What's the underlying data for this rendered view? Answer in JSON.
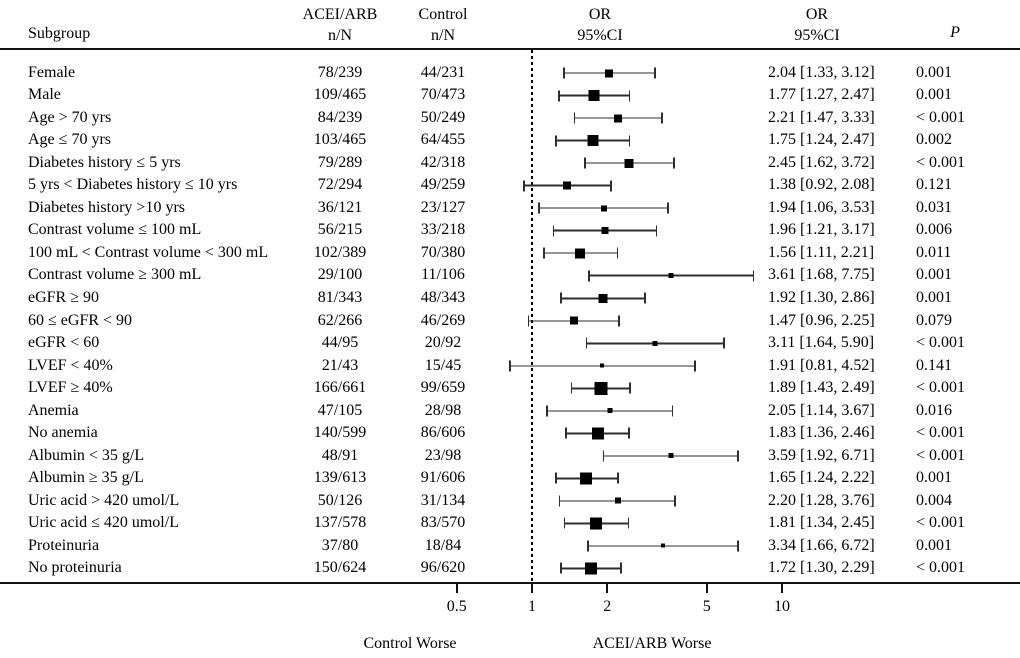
{
  "header": {
    "subgroup": "Subgroup",
    "acei_line1": "ACEI/ARB",
    "acei_line2": "n/N",
    "control_line1": "Control",
    "control_line2": "n/N",
    "or_plot_line1": "OR",
    "or_plot_line2": "95%CI",
    "or_text_line1": "OR",
    "or_text_line2": "95%CI",
    "p": "P"
  },
  "axis": {
    "ticks": [
      "0.5",
      "1",
      "2",
      "5",
      "10"
    ],
    "tick_values": [
      0.5,
      1,
      2,
      5,
      10
    ],
    "left_label": "Control Worse",
    "right_label": "ACEI/ARB Worse"
  },
  "chart_data": {
    "type": "forest",
    "x_scale": "log",
    "reference_line": 1,
    "x_ticks": [
      0.5,
      1,
      2,
      5,
      10
    ],
    "xlabel_left": "Control Worse",
    "xlabel_right": "ACEI/ARB Worse",
    "columns": [
      "Subgroup",
      "ACEI/ARB n/N",
      "Control n/N",
      "OR 95%CI",
      "OR 95%CI",
      "P"
    ],
    "rows": [
      {
        "subgroup": "Female",
        "acei": "78/239",
        "control": "44/231",
        "or": 2.04,
        "ci_lo": 1.33,
        "ci_hi": 3.12,
        "or_ci": "2.04 [1.33, 3.12]",
        "p": "0.001"
      },
      {
        "subgroup": "Male",
        "acei": "109/465",
        "control": "70/473",
        "or": 1.77,
        "ci_lo": 1.27,
        "ci_hi": 2.47,
        "or_ci": "1.77 [1.27, 2.47]",
        "p": "0.001"
      },
      {
        "subgroup": "Age > 70 yrs",
        "acei": "84/239",
        "control": "50/249",
        "or": 2.21,
        "ci_lo": 1.47,
        "ci_hi": 3.33,
        "or_ci": "2.21 [1.47, 3.33]",
        "p": "< 0.001"
      },
      {
        "subgroup": "Age ≤ 70 yrs",
        "acei": "103/465",
        "control": "64/455",
        "or": 1.75,
        "ci_lo": 1.24,
        "ci_hi": 2.47,
        "or_ci": "1.75 [1.24, 2.47]",
        "p": "0.002"
      },
      {
        "subgroup": "Diabetes history ≤ 5 yrs",
        "acei": "79/289",
        "control": "42/318",
        "or": 2.45,
        "ci_lo": 1.62,
        "ci_hi": 3.72,
        "or_ci": "2.45 [1.62, 3.72]",
        "p": "< 0.001"
      },
      {
        "subgroup": "5 yrs < Diabetes history ≤ 10 yrs",
        "acei": "72/294",
        "control": "49/259",
        "or": 1.38,
        "ci_lo": 0.92,
        "ci_hi": 2.08,
        "or_ci": "1.38 [0.92, 2.08]",
        "p": "0.121"
      },
      {
        "subgroup": "Diabetes history >10 yrs",
        "acei": "36/121",
        "control": "23/127",
        "or": 1.94,
        "ci_lo": 1.06,
        "ci_hi": 3.53,
        "or_ci": "1.94 [1.06, 3.53]",
        "p": "0.031"
      },
      {
        "subgroup": "Contrast volume ≤ 100 mL",
        "acei": "56/215",
        "control": "33/218",
        "or": 1.96,
        "ci_lo": 1.21,
        "ci_hi": 3.17,
        "or_ci": "1.96 [1.21, 3.17]",
        "p": "0.006"
      },
      {
        "subgroup": "100 mL < Contrast volume < 300 mL",
        "acei": "102/389",
        "control": "70/380",
        "or": 1.56,
        "ci_lo": 1.11,
        "ci_hi": 2.21,
        "or_ci": "1.56 [1.11, 2.21]",
        "p": "0.011"
      },
      {
        "subgroup": "Contrast volume ≥ 300 mL",
        "acei": "29/100",
        "control": "11/106",
        "or": 3.61,
        "ci_lo": 1.68,
        "ci_hi": 7.75,
        "or_ci": "3.61 [1.68, 7.75]",
        "p": "0.001"
      },
      {
        "subgroup": "eGFR ≥ 90",
        "acei": "81/343",
        "control": "48/343",
        "or": 1.92,
        "ci_lo": 1.3,
        "ci_hi": 2.86,
        "or_ci": "1.92 [1.30, 2.86]",
        "p": "0.001"
      },
      {
        "subgroup": "60 ≤ eGFR < 90",
        "acei": "62/266",
        "control": "46/269",
        "or": 1.47,
        "ci_lo": 0.96,
        "ci_hi": 2.25,
        "or_ci": "1.47 [0.96, 2.25]",
        "p": "0.079"
      },
      {
        "subgroup": "eGFR < 60",
        "acei": "44/95",
        "control": "20/92",
        "or": 3.11,
        "ci_lo": 1.64,
        "ci_hi": 5.9,
        "or_ci": "3.11 [1.64, 5.90]",
        "p": "< 0.001"
      },
      {
        "subgroup": "LVEF < 40%",
        "acei": "21/43",
        "control": "15/45",
        "or": 1.91,
        "ci_lo": 0.81,
        "ci_hi": 4.52,
        "or_ci": "1.91 [0.81, 4.52]",
        "p": "0.141"
      },
      {
        "subgroup": "LVEF ≥ 40%",
        "acei": "166/661",
        "control": "99/659",
        "or": 1.89,
        "ci_lo": 1.43,
        "ci_hi": 2.49,
        "or_ci": "1.89 [1.43, 2.49]",
        "p": "< 0.001"
      },
      {
        "subgroup": "Anemia",
        "acei": "47/105",
        "control": "28/98",
        "or": 2.05,
        "ci_lo": 1.14,
        "ci_hi": 3.67,
        "or_ci": "2.05 [1.14, 3.67]",
        "p": "0.016"
      },
      {
        "subgroup": "No anemia",
        "acei": "140/599",
        "control": "86/606",
        "or": 1.83,
        "ci_lo": 1.36,
        "ci_hi": 2.46,
        "or_ci": "1.83 [1.36, 2.46]",
        "p": "< 0.001"
      },
      {
        "subgroup": "Albumin < 35 g/L",
        "acei": "48/91",
        "control": "23/98",
        "or": 3.59,
        "ci_lo": 1.92,
        "ci_hi": 6.71,
        "or_ci": "3.59 [1.92, 6.71]",
        "p": "< 0.001"
      },
      {
        "subgroup": "Albumin ≥ 35 g/L",
        "acei": "139/613",
        "control": "91/606",
        "or": 1.65,
        "ci_lo": 1.24,
        "ci_hi": 2.22,
        "or_ci": "1.65 [1.24, 2.22]",
        "p": "0.001"
      },
      {
        "subgroup": "Uric acid > 420 umol/L",
        "acei": "50/126",
        "control": "31/134",
        "or": 2.2,
        "ci_lo": 1.28,
        "ci_hi": 3.76,
        "or_ci": "2.20 [1.28, 3.76]",
        "p": "0.004"
      },
      {
        "subgroup": "Uric acid ≤ 420 umol/L",
        "acei": "137/578",
        "control": "83/570",
        "or": 1.81,
        "ci_lo": 1.34,
        "ci_hi": 2.45,
        "or_ci": "1.81 [1.34, 2.45]",
        "p": "< 0.001"
      },
      {
        "subgroup": "Proteinuria",
        "acei": "37/80",
        "control": "18/84",
        "or": 3.34,
        "ci_lo": 1.66,
        "ci_hi": 6.72,
        "or_ci": "3.34 [1.66, 6.72]",
        "p": "0.001"
      },
      {
        "subgroup": "No proteinuria",
        "acei": "150/624",
        "control": "96/620",
        "or": 1.72,
        "ci_lo": 1.3,
        "ci_hi": 2.29,
        "or_ci": "1.72 [1.30, 2.29]",
        "p": "< 0.001"
      }
    ]
  }
}
